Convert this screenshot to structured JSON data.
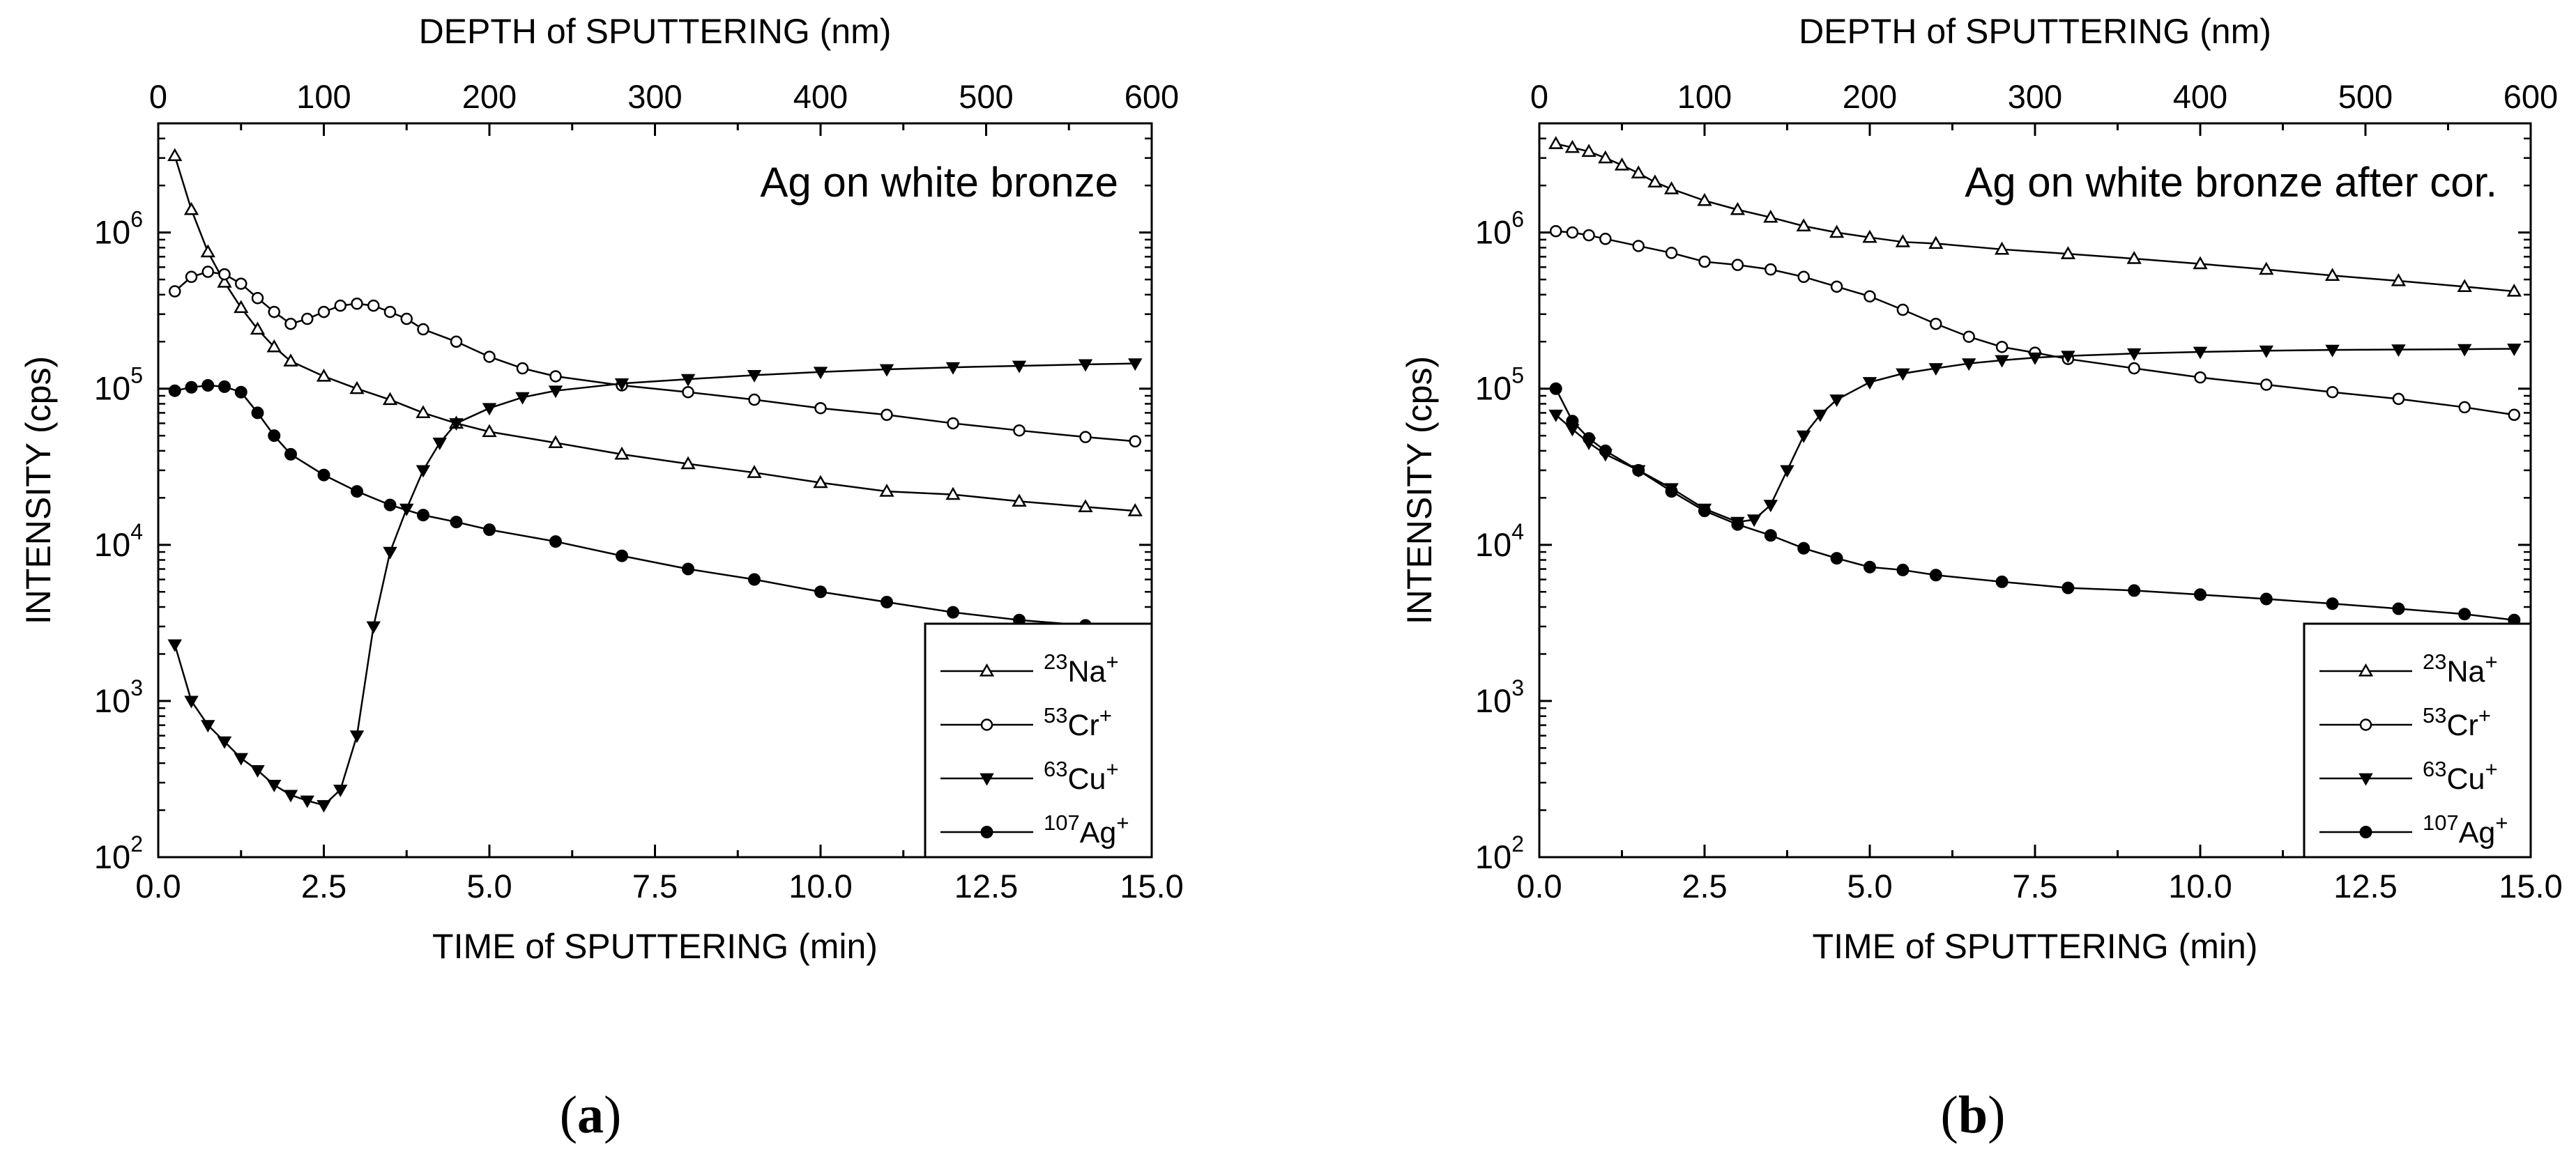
{
  "panel_labels": [
    "(a)",
    "(b)"
  ],
  "chart_data": [
    {
      "type": "line",
      "yscale": "log",
      "title": "Ag on white bronze",
      "xlabel": "TIME of SPUTTERING (min)",
      "ylabel": "INTENSITY (cps)",
      "x2label": "DEPTH of SPUTTERING (nm)",
      "xlim": [
        0,
        15
      ],
      "ylim": [
        100,
        5000000
      ],
      "x2lim": [
        0,
        600
      ],
      "xticks": [
        "0.0",
        "2.5",
        "5.0",
        "7.5",
        "10.0",
        "12.5",
        "15.0"
      ],
      "x2ticks": [
        "0",
        "100",
        "200",
        "300",
        "400",
        "500",
        "600"
      ],
      "yticks": [
        {
          "value": 100,
          "base": "10",
          "exp": "2"
        },
        {
          "value": 1000,
          "base": "10",
          "exp": "3"
        },
        {
          "value": 10000,
          "base": "10",
          "exp": "4"
        },
        {
          "value": 100000,
          "base": "10",
          "exp": "5"
        },
        {
          "value": 1000000,
          "base": "10",
          "exp": "6"
        }
      ],
      "legend": {
        "position": "bottom-right",
        "entries": [
          {
            "mass": "23",
            "element": "Na",
            "charge": "+",
            "marker": "triangle-up-open"
          },
          {
            "mass": "53",
            "element": "Cr",
            "charge": "+",
            "marker": "circle-open"
          },
          {
            "mass": "63",
            "element": "Cu",
            "charge": "+",
            "marker": "triangle-down-filled"
          },
          {
            "mass": "107",
            "element": "Ag",
            "charge": "+",
            "marker": "circle-filled"
          }
        ]
      },
      "series": [
        {
          "name": "23Na+",
          "marker": "triangle-up-open",
          "points": [
            [
              0.25,
              3100000
            ],
            [
              0.5,
              1400000
            ],
            [
              0.75,
              750000
            ],
            [
              1.0,
              480000
            ],
            [
              1.25,
              330000
            ],
            [
              1.5,
              240000
            ],
            [
              1.75,
              185000
            ],
            [
              2.0,
              150000
            ],
            [
              2.5,
              120000
            ],
            [
              3.0,
              100000
            ],
            [
              3.5,
              85000
            ],
            [
              4.0,
              70000
            ],
            [
              4.5,
              60000
            ],
            [
              5.0,
              53000
            ],
            [
              6.0,
              45000
            ],
            [
              7.0,
              38000
            ],
            [
              8.0,
              33000
            ],
            [
              9.0,
              29000
            ],
            [
              10.0,
              25000
            ],
            [
              11.0,
              22000
            ],
            [
              12.0,
              21000
            ],
            [
              13.0,
              19000
            ],
            [
              14.0,
              17500
            ],
            [
              14.75,
              16500
            ]
          ]
        },
        {
          "name": "53Cr+",
          "marker": "circle-open",
          "points": [
            [
              0.25,
              420000
            ],
            [
              0.5,
              520000
            ],
            [
              0.75,
              560000
            ],
            [
              1.0,
              540000
            ],
            [
              1.25,
              470000
            ],
            [
              1.5,
              380000
            ],
            [
              1.75,
              310000
            ],
            [
              2.0,
              260000
            ],
            [
              2.25,
              280000
            ],
            [
              2.5,
              310000
            ],
            [
              2.75,
              340000
            ],
            [
              3.0,
              350000
            ],
            [
              3.25,
              340000
            ],
            [
              3.5,
              310000
            ],
            [
              3.75,
              280000
            ],
            [
              4.0,
              240000
            ],
            [
              4.5,
              200000
            ],
            [
              5.0,
              160000
            ],
            [
              5.5,
              135000
            ],
            [
              6.0,
              120000
            ],
            [
              7.0,
              105000
            ],
            [
              8.0,
              95000
            ],
            [
              9.0,
              85000
            ],
            [
              10.0,
              75000
            ],
            [
              11.0,
              68000
            ],
            [
              12.0,
              60000
            ],
            [
              13.0,
              54000
            ],
            [
              14.0,
              49000
            ],
            [
              14.75,
              46000
            ]
          ]
        },
        {
          "name": "63Cu+",
          "marker": "triangle-down-filled",
          "points": [
            [
              0.25,
              2300
            ],
            [
              0.5,
              1000
            ],
            [
              0.75,
              700
            ],
            [
              1.0,
              550
            ],
            [
              1.25,
              430
            ],
            [
              1.5,
              360
            ],
            [
              1.75,
              290
            ],
            [
              2.0,
              250
            ],
            [
              2.25,
              230
            ],
            [
              2.5,
              215
            ],
            [
              2.75,
              270
            ],
            [
              3.0,
              600
            ],
            [
              3.25,
              3000
            ],
            [
              3.5,
              9000
            ],
            [
              3.75,
              17000
            ],
            [
              4.0,
              30000
            ],
            [
              4.25,
              45000
            ],
            [
              4.5,
              60000
            ],
            [
              5.0,
              75000
            ],
            [
              5.5,
              88000
            ],
            [
              6.0,
              97000
            ],
            [
              7.0,
              108000
            ],
            [
              8.0,
              115000
            ],
            [
              9.0,
              122000
            ],
            [
              10.0,
              128000
            ],
            [
              11.0,
              133000
            ],
            [
              12.0,
              137000
            ],
            [
              13.0,
              140000
            ],
            [
              14.0,
              143000
            ],
            [
              14.75,
              145000
            ]
          ]
        },
        {
          "name": "107Ag+",
          "marker": "circle-filled",
          "points": [
            [
              0.25,
              97000
            ],
            [
              0.5,
              102000
            ],
            [
              0.75,
              105000
            ],
            [
              1.0,
              103000
            ],
            [
              1.25,
              95000
            ],
            [
              1.5,
              70000
            ],
            [
              1.75,
              50000
            ],
            [
              2.0,
              38000
            ],
            [
              2.5,
              28000
            ],
            [
              3.0,
              22000
            ],
            [
              3.5,
              18000
            ],
            [
              4.0,
              15500
            ],
            [
              4.5,
              14000
            ],
            [
              5.0,
              12500
            ],
            [
              6.0,
              10500
            ],
            [
              7.0,
              8500
            ],
            [
              8.0,
              7000
            ],
            [
              9.0,
              6000
            ],
            [
              10.0,
              5000
            ],
            [
              11.0,
              4300
            ],
            [
              12.0,
              3700
            ],
            [
              13.0,
              3300
            ],
            [
              14.0,
              3050
            ],
            [
              14.75,
              2850
            ]
          ]
        }
      ]
    },
    {
      "type": "line",
      "yscale": "log",
      "title": "Ag on white bronze after cor.",
      "xlabel": "TIME of SPUTTERING (min)",
      "ylabel": "INTENSITY (cps)",
      "x2label": "DEPTH of SPUTTERING (nm)",
      "xlim": [
        0,
        15
      ],
      "ylim": [
        100,
        5000000
      ],
      "x2lim": [
        0,
        600
      ],
      "xticks": [
        "0.0",
        "2.5",
        "5.0",
        "7.5",
        "10.0",
        "12.5",
        "15.0"
      ],
      "x2ticks": [
        "0",
        "100",
        "200",
        "300",
        "400",
        "500",
        "600"
      ],
      "yticks": [
        {
          "value": 100,
          "base": "10",
          "exp": "2"
        },
        {
          "value": 1000,
          "base": "10",
          "exp": "3"
        },
        {
          "value": 10000,
          "base": "10",
          "exp": "4"
        },
        {
          "value": 100000,
          "base": "10",
          "exp": "5"
        },
        {
          "value": 1000000,
          "base": "10",
          "exp": "6"
        }
      ],
      "legend": {
        "position": "bottom-right",
        "entries": [
          {
            "mass": "23",
            "element": "Na",
            "charge": "+",
            "marker": "triangle-up-open"
          },
          {
            "mass": "53",
            "element": "Cr",
            "charge": "+",
            "marker": "circle-open"
          },
          {
            "mass": "63",
            "element": "Cu",
            "charge": "+",
            "marker": "triangle-down-filled"
          },
          {
            "mass": "107",
            "element": "Ag",
            "charge": "+",
            "marker": "circle-filled"
          }
        ]
      },
      "series": [
        {
          "name": "23Na+",
          "marker": "triangle-up-open",
          "points": [
            [
              0.25,
              3700000
            ],
            [
              0.5,
              3500000
            ],
            [
              0.75,
              3300000
            ],
            [
              1.0,
              3000000
            ],
            [
              1.25,
              2700000
            ],
            [
              1.5,
              2400000
            ],
            [
              1.75,
              2100000
            ],
            [
              2.0,
              1900000
            ],
            [
              2.5,
              1600000
            ],
            [
              3.0,
              1400000
            ],
            [
              3.5,
              1250000
            ],
            [
              4.0,
              1100000
            ],
            [
              4.5,
              1000000
            ],
            [
              5.0,
              930000
            ],
            [
              5.5,
              870000
            ],
            [
              6.0,
              850000
            ],
            [
              7.0,
              780000
            ],
            [
              8.0,
              730000
            ],
            [
              9.0,
              680000
            ],
            [
              10.0,
              630000
            ],
            [
              11.0,
              580000
            ],
            [
              12.0,
              530000
            ],
            [
              13.0,
              490000
            ],
            [
              14.0,
              450000
            ],
            [
              14.75,
              420000
            ]
          ]
        },
        {
          "name": "53Cr+",
          "marker": "circle-open",
          "points": [
            [
              0.25,
              1020000
            ],
            [
              0.5,
              1000000
            ],
            [
              0.75,
              960000
            ],
            [
              1.0,
              910000
            ],
            [
              1.5,
              820000
            ],
            [
              2.0,
              740000
            ],
            [
              2.5,
              650000
            ],
            [
              3.0,
              620000
            ],
            [
              3.5,
              580000
            ],
            [
              4.0,
              520000
            ],
            [
              4.5,
              450000
            ],
            [
              5.0,
              390000
            ],
            [
              5.5,
              320000
            ],
            [
              6.0,
              260000
            ],
            [
              6.5,
              215000
            ],
            [
              7.0,
              185000
            ],
            [
              7.5,
              170000
            ],
            [
              8.0,
              155000
            ],
            [
              9.0,
              135000
            ],
            [
              10.0,
              118000
            ],
            [
              11.0,
              106000
            ],
            [
              12.0,
              95000
            ],
            [
              13.0,
              86000
            ],
            [
              14.0,
              76000
            ],
            [
              14.75,
              68000
            ]
          ]
        },
        {
          "name": "63Cu+",
          "marker": "triangle-down-filled",
          "points": [
            [
              0.25,
              68000
            ],
            [
              0.5,
              55000
            ],
            [
              0.75,
              45000
            ],
            [
              1.0,
              38000
            ],
            [
              1.5,
              30000
            ],
            [
              2.0,
              23000
            ],
            [
              2.5,
              17000
            ],
            [
              3.0,
              14000
            ],
            [
              3.25,
              14500
            ],
            [
              3.5,
              18000
            ],
            [
              3.75,
              30000
            ],
            [
              4.0,
              50000
            ],
            [
              4.25,
              68000
            ],
            [
              4.5,
              85000
            ],
            [
              5.0,
              110000
            ],
            [
              5.5,
              125000
            ],
            [
              6.0,
              135000
            ],
            [
              6.5,
              145000
            ],
            [
              7.0,
              152000
            ],
            [
              7.5,
              158000
            ],
            [
              8.0,
              162000
            ],
            [
              9.0,
              168000
            ],
            [
              10.0,
              172000
            ],
            [
              11.0,
              175000
            ],
            [
              12.0,
              177000
            ],
            [
              13.0,
              178000
            ],
            [
              14.0,
              179000
            ],
            [
              14.75,
              180000
            ]
          ]
        },
        {
          "name": "107Ag+",
          "marker": "circle-filled",
          "points": [
            [
              0.25,
              100000
            ],
            [
              0.5,
              62000
            ],
            [
              0.75,
              48000
            ],
            [
              1.0,
              40000
            ],
            [
              1.5,
              30000
            ],
            [
              2.0,
              22000
            ],
            [
              2.5,
              16500
            ],
            [
              3.0,
              13500
            ],
            [
              3.5,
              11500
            ],
            [
              4.0,
              9500
            ],
            [
              4.5,
              8200
            ],
            [
              5.0,
              7200
            ],
            [
              5.5,
              6900
            ],
            [
              6.0,
              6400
            ],
            [
              7.0,
              5800
            ],
            [
              8.0,
              5300
            ],
            [
              9.0,
              5100
            ],
            [
              10.0,
              4800
            ],
            [
              11.0,
              4500
            ],
            [
              12.0,
              4200
            ],
            [
              13.0,
              3900
            ],
            [
              14.0,
              3600
            ],
            [
              14.75,
              3300
            ]
          ]
        }
      ]
    }
  ]
}
